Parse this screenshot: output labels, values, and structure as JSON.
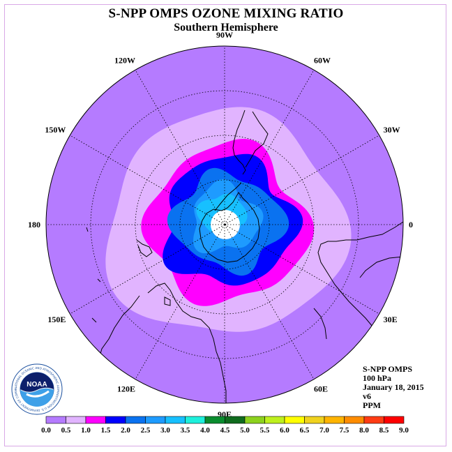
{
  "title": "S-NPP OMPS OZONE MIXING RATIO",
  "subtitle": "Southern Hemisphere",
  "info": {
    "instrument": "S-NPP OMPS",
    "level": "100 hPa",
    "date": "January 18, 2015",
    "version": "v6",
    "units": "PPM"
  },
  "logo": {
    "text": "NOAA",
    "ring_text": "NATIONAL OCEANIC AND ATMOSPHERIC ADMINISTRATION U.S. DEPARTMENT OF COMMERCE"
  },
  "longitudes": [
    {
      "label": "0",
      "deg": 0
    },
    {
      "label": "30W",
      "deg": -30
    },
    {
      "label": "60W",
      "deg": -60
    },
    {
      "label": "90W",
      "deg": -90
    },
    {
      "label": "120W",
      "deg": -120
    },
    {
      "label": "150W",
      "deg": -150
    },
    {
      "label": "180",
      "deg": 180
    },
    {
      "label": "150E",
      "deg": 150
    },
    {
      "label": "120E",
      "deg": 120
    },
    {
      "label": "90E",
      "deg": 90
    },
    {
      "label": "60E",
      "deg": 60
    },
    {
      "label": "30E",
      "deg": 30
    }
  ],
  "colorbar": {
    "ticks": [
      "0.0",
      "0.5",
      "1.0",
      "1.5",
      "2.0",
      "2.5",
      "3.0",
      "3.5",
      "4.0",
      "4.5",
      "5.0",
      "5.5",
      "6.0",
      "6.5",
      "7.0",
      "7.5",
      "8.0",
      "8.5",
      "9.0"
    ],
    "colors": [
      "#b57bff",
      "#e1b4ff",
      "#ff00ff",
      "#0000ff",
      "#0a72f0",
      "#1e9bff",
      "#17c0ff",
      "#1ef0dc",
      "#0a8c2e",
      "#0f6b1e",
      "#8cd21e",
      "#bef01e",
      "#ffff00",
      "#f0d21e",
      "#ffb400",
      "#ff8c00",
      "#ff3c14",
      "#ff0000",
      "#8c5a32"
    ]
  },
  "ozone_levels": [
    {
      "range": "0.5-1.0",
      "color": "#e1b4ff"
    },
    {
      "range": "1.0-1.5",
      "color": "#ff00ff"
    },
    {
      "range": "1.5-2.0",
      "color": "#0000ff"
    },
    {
      "range": "2.0-2.5",
      "color": "#0a72f0"
    },
    {
      "range": "2.5-3.0",
      "color": "#1e9bff"
    },
    {
      "range": "3.0-3.5",
      "color": "#17c0ff"
    }
  ],
  "background_color": "#b57bff",
  "pole_color": "#ffffff"
}
